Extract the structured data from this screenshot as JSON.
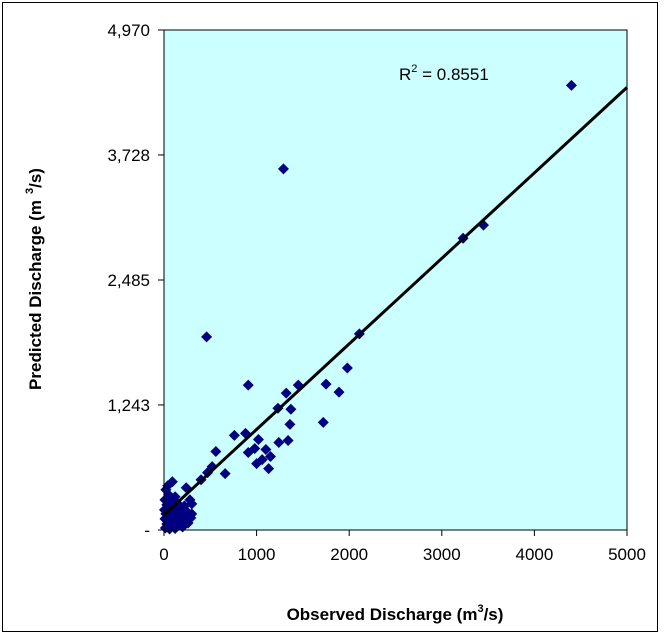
{
  "chart_data": {
    "type": "scatter",
    "xlabel_main": "Observed Discharge (m",
    "xlabel_sup": "3",
    "xlabel_end": "/s)",
    "ylabel_main": "Predicted Discharge (m",
    "ylabel_sup": "3",
    "ylabel_end": "/s)",
    "annotation": {
      "main": "R",
      "sup": "2",
      "end": " = 0.8551"
    },
    "xlim": [
      0,
      5000
    ],
    "ylim": [
      0,
      4970
    ],
    "x_ticks": [
      0,
      1000,
      2000,
      3000,
      4000,
      5000
    ],
    "x_tick_labels": [
      "0",
      "1000",
      "2000",
      "3000",
      "4000",
      "5000"
    ],
    "y_ticks": [
      0,
      1243,
      2485,
      3728,
      4970
    ],
    "y_tick_labels": [
      "-",
      "1,243",
      "2,485",
      "3,728",
      "4,970"
    ],
    "grid": false,
    "plot_background": "#ccffff",
    "marker_color": "#000080",
    "trendline": {
      "x": [
        0,
        5000
      ],
      "y": [
        150,
        4400
      ],
      "color": "#000000"
    },
    "points": [
      {
        "x": 4400,
        "y": 4420
      },
      {
        "x": 1290,
        "y": 3590
      },
      {
        "x": 3230,
        "y": 2900
      },
      {
        "x": 3450,
        "y": 3030
      },
      {
        "x": 2110,
        "y": 1950
      },
      {
        "x": 460,
        "y": 1920
      },
      {
        "x": 1980,
        "y": 1610
      },
      {
        "x": 910,
        "y": 1440
      },
      {
        "x": 1750,
        "y": 1450
      },
      {
        "x": 1890,
        "y": 1370
      },
      {
        "x": 1320,
        "y": 1360
      },
      {
        "x": 1450,
        "y": 1440
      },
      {
        "x": 1370,
        "y": 1200
      },
      {
        "x": 1230,
        "y": 1210
      },
      {
        "x": 1720,
        "y": 1070
      },
      {
        "x": 1360,
        "y": 1050
      },
      {
        "x": 760,
        "y": 940
      },
      {
        "x": 880,
        "y": 960
      },
      {
        "x": 1020,
        "y": 900
      },
      {
        "x": 1340,
        "y": 890
      },
      {
        "x": 1240,
        "y": 870
      },
      {
        "x": 980,
        "y": 810
      },
      {
        "x": 1100,
        "y": 800
      },
      {
        "x": 910,
        "y": 770
      },
      {
        "x": 560,
        "y": 780
      },
      {
        "x": 1150,
        "y": 730
      },
      {
        "x": 1060,
        "y": 700
      },
      {
        "x": 1000,
        "y": 660
      },
      {
        "x": 1130,
        "y": 610
      },
      {
        "x": 520,
        "y": 630
      },
      {
        "x": 470,
        "y": 570
      },
      {
        "x": 660,
        "y": 560
      },
      {
        "x": 400,
        "y": 500
      },
      {
        "x": 90,
        "y": 480
      },
      {
        "x": 40,
        "y": 440
      },
      {
        "x": 20,
        "y": 400
      },
      {
        "x": 50,
        "y": 350
      },
      {
        "x": 120,
        "y": 330
      },
      {
        "x": 10,
        "y": 300
      },
      {
        "x": 280,
        "y": 300
      },
      {
        "x": 80,
        "y": 280
      },
      {
        "x": 150,
        "y": 260
      },
      {
        "x": 30,
        "y": 250
      },
      {
        "x": 220,
        "y": 240
      },
      {
        "x": 300,
        "y": 260
      },
      {
        "x": 60,
        "y": 220
      },
      {
        "x": 5,
        "y": 200
      },
      {
        "x": 110,
        "y": 200
      },
      {
        "x": 180,
        "y": 190
      },
      {
        "x": 250,
        "y": 180
      },
      {
        "x": 20,
        "y": 160
      },
      {
        "x": 70,
        "y": 150
      },
      {
        "x": 140,
        "y": 140
      },
      {
        "x": 230,
        "y": 130
      },
      {
        "x": 290,
        "y": 120
      },
      {
        "x": 10,
        "y": 110
      },
      {
        "x": 50,
        "y": 100
      },
      {
        "x": 100,
        "y": 90
      },
      {
        "x": 170,
        "y": 80
      },
      {
        "x": 260,
        "y": 70
      },
      {
        "x": 30,
        "y": 60
      },
      {
        "x": 80,
        "y": 50
      },
      {
        "x": 130,
        "y": 40
      },
      {
        "x": 200,
        "y": 30
      },
      {
        "x": 15,
        "y": 20
      },
      {
        "x": 60,
        "y": 10
      },
      {
        "x": 240,
        "y": 420
      },
      {
        "x": 300,
        "y": 160
      },
      {
        "x": 190,
        "y": 60
      },
      {
        "x": 120,
        "y": 15
      },
      {
        "x": 40,
        "y": 30
      }
    ]
  }
}
